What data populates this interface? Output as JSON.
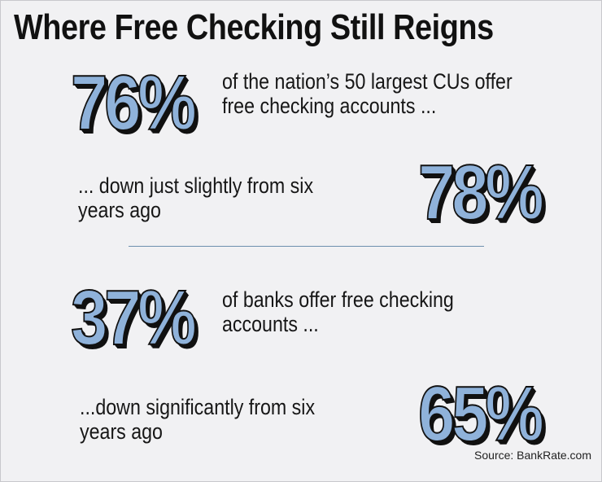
{
  "header": {
    "title": "Where Free Checking Still Reigns"
  },
  "items": [
    {
      "stat": "76%",
      "text": [
        "of the nation’s 50 largest CUs offer",
        "free checking accounts ..."
      ]
    },
    {
      "stat": "78%",
      "text": [
        "... down just slightly from six",
        "years ago"
      ]
    },
    {
      "stat": "37%",
      "text": [
        "of banks offer free checking",
        "accounts ..."
      ]
    },
    {
      "stat": "65%",
      "text": [
        "...down significantly from six",
        "years ago"
      ]
    }
  ],
  "footer": {
    "source": "Source: BankRate.com"
  }
}
